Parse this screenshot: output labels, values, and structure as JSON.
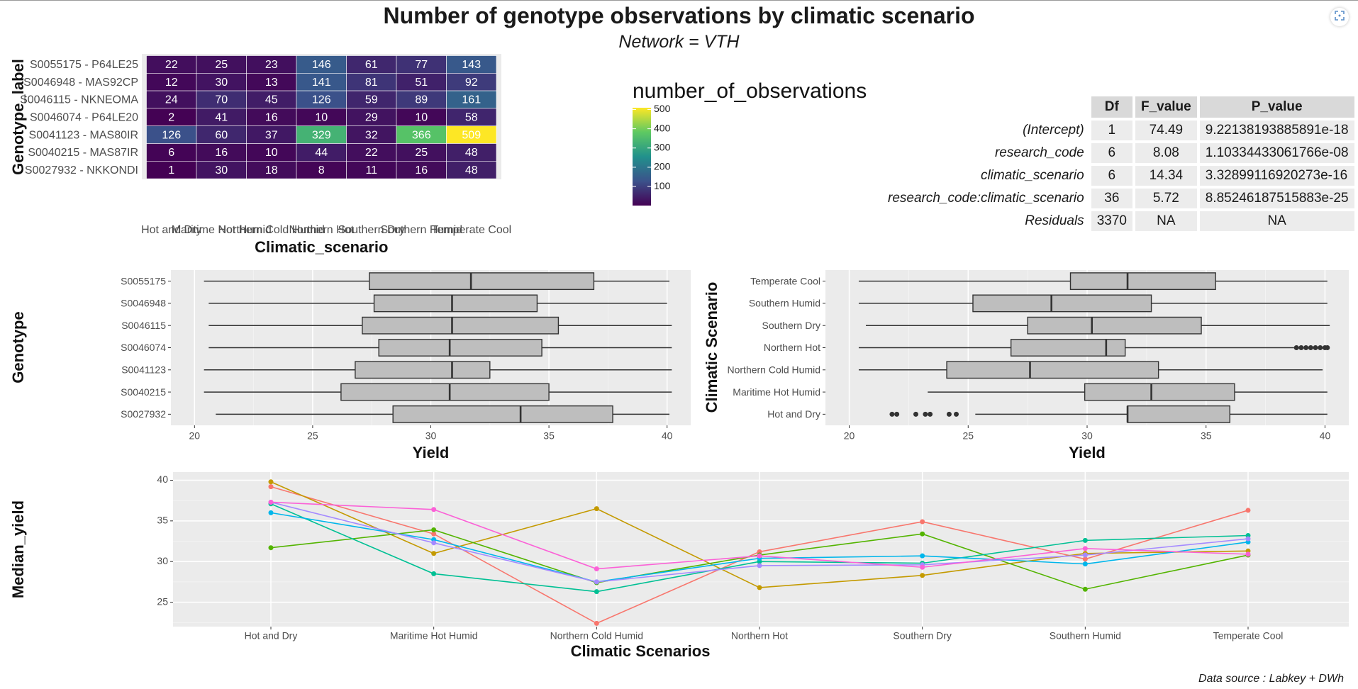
{
  "page": {
    "title": "Number of genotype observations by climatic scenario",
    "subtitle": "Network = VTH",
    "caption": "Data source : Labkey + DWh",
    "icons": {
      "expand": "expand-icon"
    }
  },
  "anova_table": {
    "headers": [
      "Df",
      "F_value",
      "P_value"
    ],
    "rows": [
      {
        "term": "(Intercept)",
        "df": "1",
        "f": "74.49",
        "p": "9.22138193885891e-18"
      },
      {
        "term": "research_code",
        "df": "6",
        "f": "8.08",
        "p": "1.10334433061766e-08"
      },
      {
        "term": "climatic_scenario",
        "df": "6",
        "f": "14.34",
        "p": "3.32899116920273e-16"
      },
      {
        "term": "research_code:climatic_scenario",
        "df": "36",
        "f": "5.72",
        "p": "8.85246187515883e-25"
      },
      {
        "term": "Residuals",
        "df": "3370",
        "f": "NA",
        "p": "NA"
      }
    ]
  },
  "chart_data": [
    {
      "type": "heatmap",
      "xlabel": "Climatic_scenario",
      "ylabel": "Genotype_label",
      "x_categories": [
        "Hot and Dry",
        "Maritime Hot Humid",
        "Northern Cold Humid",
        "Northern Hot",
        "Southern Dry",
        "Southern Humid",
        "Temperate Cool"
      ],
      "y_categories": [
        "S0055175 - P64LE25",
        "S0046948 - MAS92CP",
        "S0046115 - NKNEOMA",
        "S0046074 - P64LE20",
        "S0041123 - MAS80IR",
        "S0040215 - MAS87IR",
        "S0027932 - NKKONDI"
      ],
      "values": [
        [
          22,
          25,
          23,
          146,
          61,
          77,
          143
        ],
        [
          12,
          30,
          13,
          141,
          81,
          51,
          92
        ],
        [
          24,
          70,
          45,
          126,
          59,
          89,
          161
        ],
        [
          2,
          41,
          16,
          10,
          29,
          10,
          58
        ],
        [
          126,
          60,
          37,
          329,
          32,
          366,
          509
        ],
        [
          6,
          16,
          10,
          44,
          22,
          25,
          48
        ],
        [
          1,
          30,
          18,
          8,
          11,
          16,
          48
        ]
      ],
      "legend_title": "number_of_observations",
      "legend_ticks": [
        100,
        200,
        300,
        400,
        500
      ],
      "range": [
        1,
        509
      ],
      "colors": [
        "#440154",
        "#3b528b",
        "#21918c",
        "#5ec962",
        "#fde725"
      ]
    },
    {
      "type": "box",
      "xlabel": "Yield",
      "ylabel": "Genotype",
      "xlim": [
        19,
        41
      ],
      "xticks": [
        20,
        25,
        30,
        35,
        40
      ],
      "categories": [
        "S0055175",
        "S0046948",
        "S0046115",
        "S0046074",
        "S0041123",
        "S0040215",
        "S0027932"
      ],
      "boxes": [
        {
          "min": 20.4,
          "q1": 27.4,
          "median": 31.7,
          "q3": 36.9,
          "max": 40.1,
          "outliers": []
        },
        {
          "min": 20.6,
          "q1": 27.6,
          "median": 30.9,
          "q3": 34.5,
          "max": 40.0,
          "outliers": []
        },
        {
          "min": 20.6,
          "q1": 27.1,
          "median": 30.9,
          "q3": 35.4,
          "max": 40.2,
          "outliers": []
        },
        {
          "min": 20.6,
          "q1": 27.8,
          "median": 30.8,
          "q3": 34.7,
          "max": 40.2,
          "outliers": []
        },
        {
          "min": 20.4,
          "q1": 26.8,
          "median": 30.9,
          "q3": 32.5,
          "max": 40.2,
          "outliers": []
        },
        {
          "min": 20.4,
          "q1": 26.2,
          "median": 30.8,
          "q3": 35.0,
          "max": 40.2,
          "outliers": []
        },
        {
          "min": 20.9,
          "q1": 28.4,
          "median": 33.8,
          "q3": 37.7,
          "max": 40.1,
          "outliers": []
        }
      ],
      "fill": "#bebebe"
    },
    {
      "type": "box",
      "xlabel": "Yield",
      "ylabel": "Climatic Scenario",
      "xlim": [
        19,
        41
      ],
      "xticks": [
        20,
        25,
        30,
        35,
        40
      ],
      "categories": [
        "Temperate Cool",
        "Southern Humid",
        "Southern Dry",
        "Northern Hot",
        "Northern Cold Humid",
        "Maritime Hot Humid",
        "Hot and Dry"
      ],
      "boxes": [
        {
          "min": 20.4,
          "q1": 29.3,
          "median": 31.7,
          "q3": 35.4,
          "max": 40.1,
          "outliers": []
        },
        {
          "min": 20.4,
          "q1": 25.2,
          "median": 28.5,
          "q3": 32.7,
          "max": 40.1,
          "outliers": []
        },
        {
          "min": 20.7,
          "q1": 27.5,
          "median": 30.2,
          "q3": 34.8,
          "max": 40.2,
          "outliers": []
        },
        {
          "min": 20.4,
          "q1": 26.8,
          "median": 30.8,
          "q3": 31.6,
          "max": 38.7,
          "outliers": [
            38.8,
            39.0,
            39.2,
            39.4,
            39.6,
            39.8,
            40.0,
            40.1
          ]
        },
        {
          "min": 20.4,
          "q1": 24.1,
          "median": 27.6,
          "q3": 33.0,
          "max": 39.9,
          "outliers": []
        },
        {
          "min": 23.3,
          "q1": 29.9,
          "median": 32.7,
          "q3": 36.2,
          "max": 40.1,
          "outliers": []
        },
        {
          "min": 25.3,
          "q1": 31.7,
          "median": 31.7,
          "q3": 36.0,
          "max": 40.1,
          "outliers": [
            21.8,
            22.0,
            22.8,
            23.2,
            23.4,
            24.2,
            24.5
          ]
        }
      ],
      "fill": "#bebebe"
    },
    {
      "type": "line",
      "xlabel": "Climatic Scenarios",
      "ylabel": "Median_yield",
      "ylim": [
        22,
        41
      ],
      "yticks": [
        25,
        30,
        35,
        40
      ],
      "categories": [
        "Hot and Dry",
        "Maritime Hot Humid",
        "Northern Cold Humid",
        "Northern Hot",
        "Southern Dry",
        "Southern Humid",
        "Temperate Cool"
      ],
      "series": [
        {
          "color": "#f8766d",
          "values": [
            39.2,
            33.4,
            22.4,
            31.2,
            34.9,
            30.3,
            36.3
          ]
        },
        {
          "color": "#c49a00",
          "values": [
            39.8,
            31.0,
            36.5,
            26.8,
            28.3,
            31.0,
            31.3
          ]
        },
        {
          "color": "#53b400",
          "values": [
            31.7,
            33.9,
            27.4,
            30.8,
            33.4,
            26.6,
            30.8
          ]
        },
        {
          "color": "#00c094",
          "values": [
            37.1,
            28.5,
            26.3,
            30.0,
            29.8,
            32.6,
            33.2
          ]
        },
        {
          "color": "#00b6eb",
          "values": [
            36.0,
            32.7,
            27.5,
            30.4,
            30.7,
            29.7,
            32.4
          ]
        },
        {
          "color": "#a58aff",
          "values": [
            37.3,
            32.3,
            27.5,
            29.5,
            29.6,
            30.8,
            32.8
          ]
        },
        {
          "color": "#fb61d7",
          "values": [
            37.3,
            36.4,
            29.1,
            30.7,
            29.3,
            31.6,
            30.9
          ]
        }
      ]
    }
  ]
}
